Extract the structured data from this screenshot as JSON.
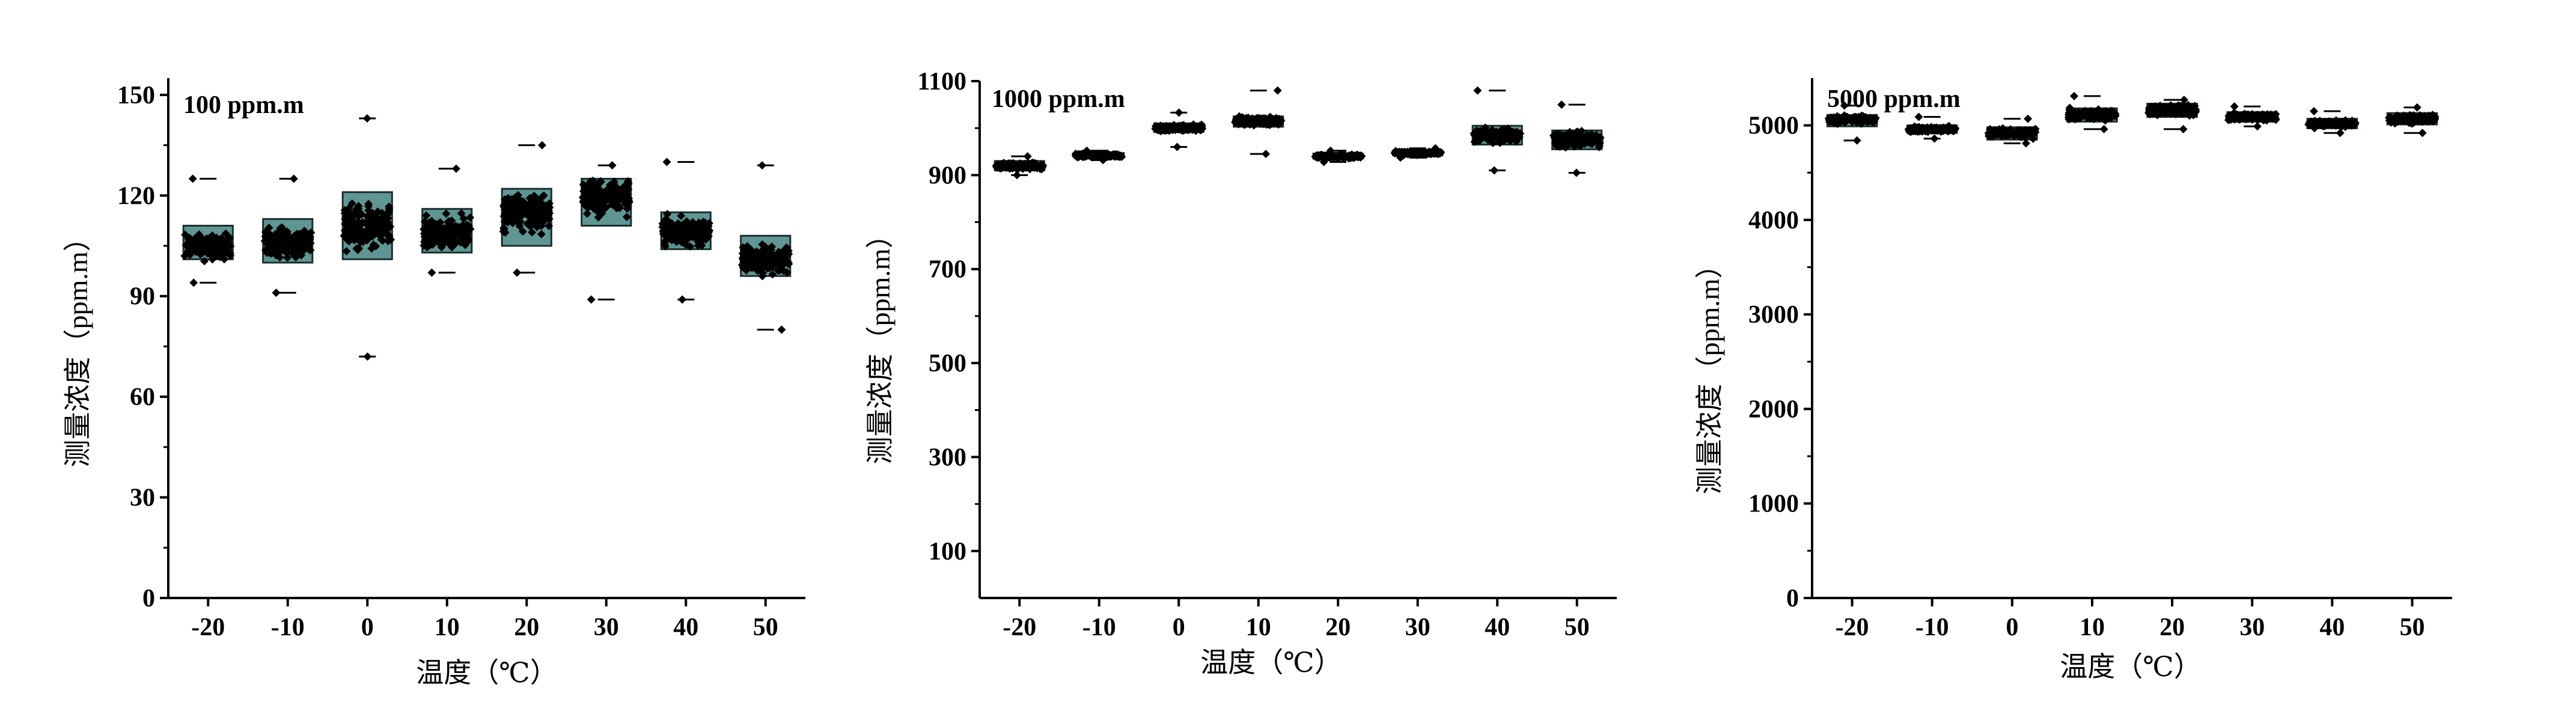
{
  "colors": {
    "box_fill": "#5f9694",
    "box_edge": "#1a2e2d",
    "points": "#000000",
    "axis": "#000000"
  },
  "chart_data": [
    {
      "type": "box",
      "annotation": "100 ppm.m",
      "xlabel": "温度（℃）",
      "ylabel": "测量浓度（ppm.m）",
      "categories": [
        "-20",
        "-10",
        "0",
        "10",
        "20",
        "30",
        "40",
        "50"
      ],
      "ylim": [
        0,
        155
      ],
      "yticks": [
        0,
        30,
        60,
        90,
        120,
        150
      ],
      "ytick_labels": [
        "0",
        "30",
        "60",
        "90",
        "120",
        "150"
      ],
      "boxes": [
        {
          "q1": 101,
          "median": 105,
          "q3": 111,
          "min": 94,
          "max": 125
        },
        {
          "q1": 100,
          "median": 106,
          "q3": 113,
          "min": 91,
          "max": 125
        },
        {
          "q1": 101,
          "median": 110,
          "q3": 121,
          "min": 72,
          "max": 143
        },
        {
          "q1": 103,
          "median": 109,
          "q3": 116,
          "min": 97,
          "max": 128
        },
        {
          "q1": 105,
          "median": 115,
          "q3": 122,
          "min": 97,
          "max": 135
        },
        {
          "q1": 111,
          "median": 120,
          "q3": 125,
          "min": 89,
          "max": 129
        },
        {
          "q1": 104,
          "median": 109,
          "q3": 115,
          "min": 89,
          "max": 130
        },
        {
          "q1": 96,
          "median": 101,
          "q3": 108,
          "min": 80,
          "max": 129
        }
      ]
    },
    {
      "type": "box",
      "annotation": "1000 ppm.m",
      "xlabel": "温度（℃）",
      "ylabel": "测量浓度（ppm.m）",
      "categories": [
        "-20",
        "-10",
        "0",
        "10",
        "20",
        "30",
        "40",
        "50"
      ],
      "ylim": [
        0,
        1100
      ],
      "yticks": [
        100,
        300,
        500,
        700,
        900,
        1100
      ],
      "ytick_labels": [
        "100",
        "300",
        "500",
        "700",
        "900",
        "1100"
      ],
      "boxes": [
        {
          "q1": 910,
          "median": 920,
          "q3": 930,
          "min": 900,
          "max": 940
        },
        {
          "q1": 937,
          "median": 942,
          "q3": 947,
          "min": 932,
          "max": 952
        },
        {
          "q1": 992,
          "median": 1000,
          "q3": 1010,
          "min": 960,
          "max": 1033
        },
        {
          "q1": 1003,
          "median": 1015,
          "q3": 1025,
          "min": 945,
          "max": 1080
        },
        {
          "q1": 935,
          "median": 940,
          "q3": 946,
          "min": 928,
          "max": 952
        },
        {
          "q1": 942,
          "median": 947,
          "q3": 952,
          "min": 937,
          "max": 957
        },
        {
          "q1": 965,
          "median": 985,
          "q3": 1005,
          "min": 910,
          "max": 1080
        },
        {
          "q1": 955,
          "median": 975,
          "q3": 995,
          "min": 905,
          "max": 1050
        }
      ]
    },
    {
      "type": "box",
      "annotation": "5000 ppm.m",
      "xlabel": "温度（℃）",
      "ylabel": "测量浓度（ppm.m）",
      "categories": [
        "-20",
        "-10",
        "0",
        "10",
        "20",
        "30",
        "40",
        "50"
      ],
      "ylim": [
        0,
        5500
      ],
      "yticks": [
        0,
        1000,
        2000,
        3000,
        4000,
        5000
      ],
      "ytick_labels": [
        "0",
        "1000",
        "2000",
        "3000",
        "4000",
        "5000"
      ],
      "boxes": [
        {
          "q1": 4990,
          "median": 5060,
          "q3": 5110,
          "min": 4840,
          "max": 5210
        },
        {
          "q1": 4920,
          "median": 4960,
          "q3": 5000,
          "min": 4860,
          "max": 5090
        },
        {
          "q1": 4850,
          "median": 4920,
          "q3": 4980,
          "min": 4810,
          "max": 5070
        },
        {
          "q1": 5040,
          "median": 5110,
          "q3": 5180,
          "min": 4960,
          "max": 5310
        },
        {
          "q1": 5090,
          "median": 5160,
          "q3": 5230,
          "min": 4960,
          "max": 5270
        },
        {
          "q1": 5040,
          "median": 5090,
          "q3": 5140,
          "min": 4990,
          "max": 5200
        },
        {
          "q1": 4970,
          "median": 5020,
          "q3": 5070,
          "min": 4920,
          "max": 5150
        },
        {
          "q1": 5010,
          "median": 5070,
          "q3": 5130,
          "min": 4920,
          "max": 5190
        }
      ]
    }
  ]
}
